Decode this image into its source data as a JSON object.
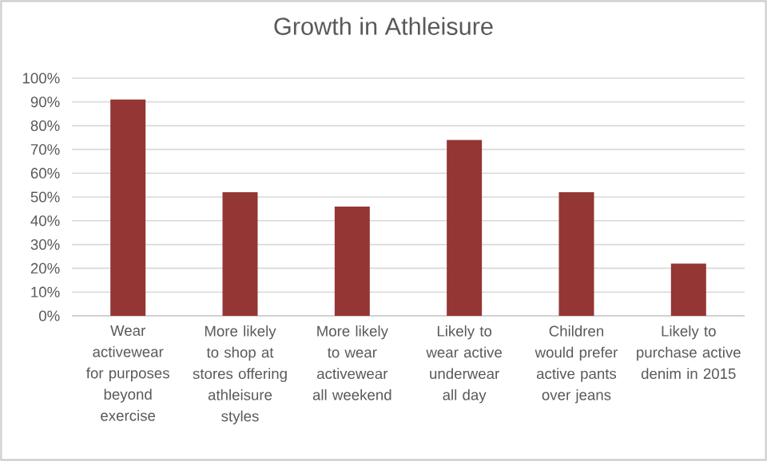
{
  "chart_data": {
    "type": "bar",
    "title": "Growth in Athleisure",
    "categories": [
      "Wear activewear for purposes beyond exercise",
      "More likely to shop at stores offering athleisure styles",
      "More likely to wear activewear all weekend",
      "Likely to wear active underwear all day",
      "Children would prefer active pants over jeans",
      "Likely to purchase active denim in 2015"
    ],
    "values": [
      91,
      52,
      46,
      74,
      52,
      22
    ],
    "color": "#943634",
    "ylim": [
      0,
      100
    ],
    "yticks": [
      {
        "value": 0,
        "label": "0%"
      },
      {
        "value": 10,
        "label": "10%"
      },
      {
        "value": 20,
        "label": "20%"
      },
      {
        "value": 30,
        "label": "30%"
      },
      {
        "value": 40,
        "label": "40%"
      },
      {
        "value": 50,
        "label": "50%"
      },
      {
        "value": 60,
        "label": "60%"
      },
      {
        "value": 70,
        "label": "70%"
      },
      {
        "value": 80,
        "label": "80%"
      },
      {
        "value": 90,
        "label": "90%"
      },
      {
        "value": 100,
        "label": "100%"
      }
    ],
    "grid": "y"
  }
}
